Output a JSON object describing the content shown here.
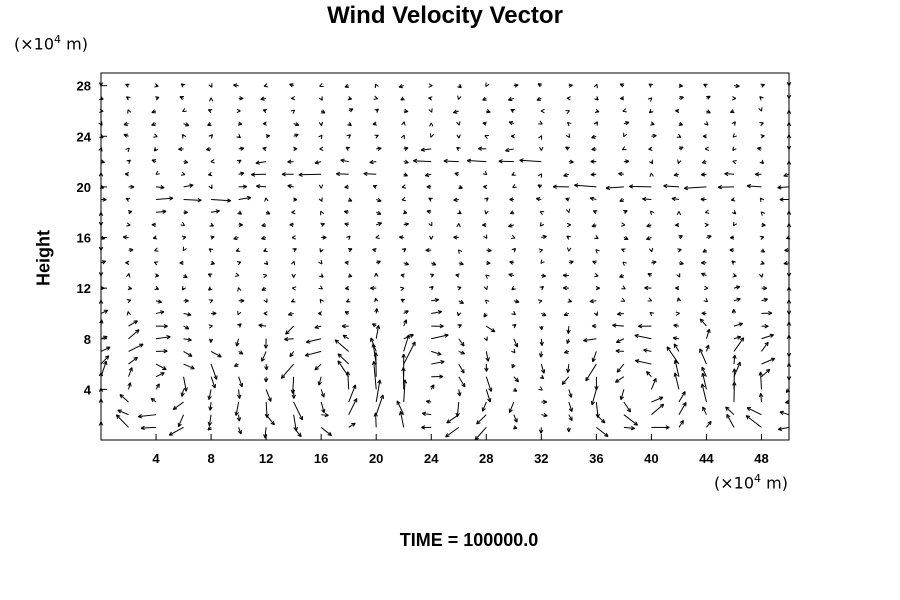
{
  "chart_data": {
    "type": "vector-field",
    "title": "Wind Velocity Vector",
    "ylabel": "Height",
    "y_unit_prefix": "(×10",
    "y_unit_exp": "4",
    "y_unit_suffix": " m)",
    "x_unit_prefix": "(×10",
    "x_unit_exp": "4",
    "x_unit_suffix": " m)",
    "xlim": [
      0,
      50
    ],
    "ylim": [
      0,
      29
    ],
    "x_ticks": [
      4,
      8,
      12,
      16,
      20,
      24,
      28,
      32,
      36,
      40,
      44,
      48
    ],
    "y_ticks": [
      4,
      8,
      12,
      16,
      20,
      24,
      28
    ],
    "grid_dx": 2,
    "grid_dy": 1,
    "time_label": "TIME = 100000.0",
    "vortex_centers_x": [
      4,
      17,
      24,
      39,
      50
    ],
    "jets": [
      {
        "x_from": 4,
        "x_to": 10,
        "y": 19,
        "direction": "east"
      },
      {
        "x_from": 12,
        "x_to": 20,
        "y": 21,
        "direction": "west"
      },
      {
        "x_from": 24,
        "x_to": 32,
        "y": 22,
        "direction": "west"
      },
      {
        "x_from": 34,
        "x_to": 50,
        "y": 20,
        "direction": "west"
      }
    ]
  }
}
